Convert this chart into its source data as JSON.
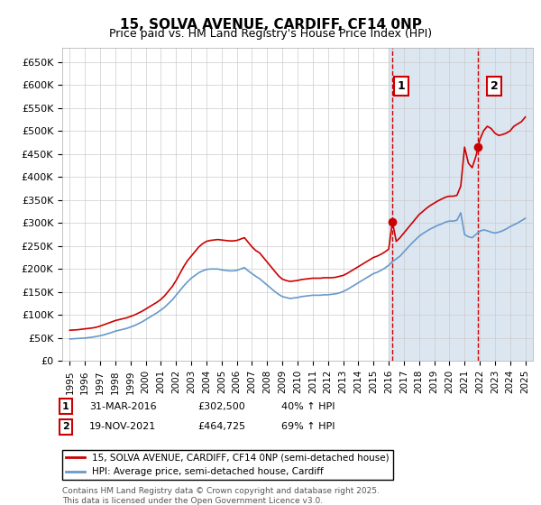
{
  "title": "15, SOLVA AVENUE, CARDIFF, CF14 0NP",
  "subtitle": "Price paid vs. HM Land Registry's House Price Index (HPI)",
  "ylim": [
    0,
    680000
  ],
  "yticks": [
    0,
    50000,
    100000,
    150000,
    200000,
    250000,
    300000,
    350000,
    400000,
    450000,
    500000,
    550000,
    600000,
    650000
  ],
  "xlabel_years": [
    "1995",
    "1996",
    "1997",
    "1998",
    "1999",
    "2000",
    "2001",
    "2002",
    "2003",
    "2004",
    "2005",
    "2006",
    "2007",
    "2008",
    "2009",
    "2010",
    "2011",
    "2012",
    "2013",
    "2014",
    "2015",
    "2016",
    "2017",
    "2018",
    "2019",
    "2020",
    "2021",
    "2022",
    "2023",
    "2024",
    "2025"
  ],
  "red_line_color": "#cc0000",
  "blue_line_color": "#6699cc",
  "background_color": "#ffffff",
  "plot_bg_color": "#ffffff",
  "right_bg_color": "#dce6f1",
  "grid_color": "#cccccc",
  "vline_color": "#cc0000",
  "marker1_year": 2016.25,
  "marker1_price": 302500,
  "marker2_year": 2021.9,
  "marker2_price": 464725,
  "annotation1_label": "1",
  "annotation2_label": "2",
  "sale1_date": "31-MAR-2016",
  "sale1_price": "£302,500",
  "sale1_hpi": "40% ↑ HPI",
  "sale2_date": "19-NOV-2021",
  "sale2_price": "£464,725",
  "sale2_hpi": "69% ↑ HPI",
  "legend1": "15, SOLVA AVENUE, CARDIFF, CF14 0NP (semi-detached house)",
  "legend2": "HPI: Average price, semi-detached house, Cardiff",
  "footnote": "Contains HM Land Registry data © Crown copyright and database right 2025.\nThis data is licensed under the Open Government Licence v3.0.",
  "red_x": [
    1995.0,
    1995.25,
    1995.5,
    1995.75,
    1996.0,
    1996.25,
    1996.5,
    1996.75,
    1997.0,
    1997.25,
    1997.5,
    1997.75,
    1998.0,
    1998.25,
    1998.5,
    1998.75,
    1999.0,
    1999.25,
    1999.5,
    1999.75,
    2000.0,
    2000.25,
    2000.5,
    2000.75,
    2001.0,
    2001.25,
    2001.5,
    2001.75,
    2002.0,
    2002.25,
    2002.5,
    2002.75,
    2003.0,
    2003.25,
    2003.5,
    2003.75,
    2004.0,
    2004.25,
    2004.5,
    2004.75,
    2005.0,
    2005.25,
    2005.5,
    2005.75,
    2006.0,
    2006.25,
    2006.5,
    2006.75,
    2007.0,
    2007.25,
    2007.5,
    2007.75,
    2008.0,
    2008.25,
    2008.5,
    2008.75,
    2009.0,
    2009.25,
    2009.5,
    2009.75,
    2010.0,
    2010.25,
    2010.5,
    2010.75,
    2011.0,
    2011.25,
    2011.5,
    2011.75,
    2012.0,
    2012.25,
    2012.5,
    2012.75,
    2013.0,
    2013.25,
    2013.5,
    2013.75,
    2014.0,
    2014.25,
    2014.5,
    2014.75,
    2015.0,
    2015.25,
    2015.5,
    2015.75,
    2016.0,
    2016.25,
    2016.5,
    2016.75,
    2017.0,
    2017.25,
    2017.5,
    2017.75,
    2018.0,
    2018.25,
    2018.5,
    2018.75,
    2019.0,
    2019.25,
    2019.5,
    2019.75,
    2020.0,
    2020.25,
    2020.5,
    2020.75,
    2021.0,
    2021.25,
    2021.5,
    2021.75,
    2022.0,
    2022.25,
    2022.5,
    2022.75,
    2023.0,
    2023.25,
    2023.5,
    2023.75,
    2024.0,
    2024.25,
    2024.5,
    2024.75,
    2025.0
  ],
  "red_y": [
    67000,
    67500,
    68000,
    69000,
    70000,
    71000,
    72000,
    73500,
    76000,
    79000,
    82000,
    85000,
    88000,
    90000,
    92000,
    94000,
    97000,
    100000,
    104000,
    108000,
    113000,
    118000,
    123000,
    128000,
    134000,
    142000,
    152000,
    162000,
    175000,
    190000,
    205000,
    218000,
    228000,
    238000,
    248000,
    255000,
    260000,
    262000,
    263000,
    264000,
    263000,
    262000,
    261000,
    261000,
    262000,
    265000,
    268000,
    258000,
    248000,
    240000,
    235000,
    225000,
    215000,
    205000,
    195000,
    185000,
    178000,
    175000,
    173000,
    174000,
    175000,
    177000,
    178000,
    179000,
    180000,
    180000,
    180000,
    181000,
    181000,
    181000,
    182000,
    184000,
    186000,
    190000,
    195000,
    200000,
    205000,
    210000,
    215000,
    220000,
    225000,
    228000,
    232000,
    237000,
    243000,
    302500,
    260000,
    268000,
    278000,
    288000,
    298000,
    308000,
    318000,
    325000,
    332000,
    338000,
    343000,
    348000,
    352000,
    356000,
    358000,
    358000,
    360000,
    380000,
    464725,
    430000,
    420000,
    445000,
    480000,
    500000,
    510000,
    505000,
    495000,
    490000,
    492000,
    495000,
    500000,
    510000,
    515000,
    520000,
    530000
  ],
  "blue_x": [
    1995.0,
    1995.25,
    1995.5,
    1995.75,
    1996.0,
    1996.25,
    1996.5,
    1996.75,
    1997.0,
    1997.25,
    1997.5,
    1997.75,
    1998.0,
    1998.25,
    1998.5,
    1998.75,
    1999.0,
    1999.25,
    1999.5,
    1999.75,
    2000.0,
    2000.25,
    2000.5,
    2000.75,
    2001.0,
    2001.25,
    2001.5,
    2001.75,
    2002.0,
    2002.25,
    2002.5,
    2002.75,
    2003.0,
    2003.25,
    2003.5,
    2003.75,
    2004.0,
    2004.25,
    2004.5,
    2004.75,
    2005.0,
    2005.25,
    2005.5,
    2005.75,
    2006.0,
    2006.25,
    2006.5,
    2006.75,
    2007.0,
    2007.25,
    2007.5,
    2007.75,
    2008.0,
    2008.25,
    2008.5,
    2008.75,
    2009.0,
    2009.25,
    2009.5,
    2009.75,
    2010.0,
    2010.25,
    2010.5,
    2010.75,
    2011.0,
    2011.25,
    2011.5,
    2011.75,
    2012.0,
    2012.25,
    2012.5,
    2012.75,
    2013.0,
    2013.25,
    2013.5,
    2013.75,
    2014.0,
    2014.25,
    2014.5,
    2014.75,
    2015.0,
    2015.25,
    2015.5,
    2015.75,
    2016.0,
    2016.25,
    2016.5,
    2016.75,
    2017.0,
    2017.25,
    2017.5,
    2017.75,
    2018.0,
    2018.25,
    2018.5,
    2018.75,
    2019.0,
    2019.25,
    2019.5,
    2019.75,
    2020.0,
    2020.25,
    2020.5,
    2020.75,
    2021.0,
    2021.25,
    2021.5,
    2021.75,
    2022.0,
    2022.25,
    2022.5,
    2022.75,
    2023.0,
    2023.25,
    2023.5,
    2023.75,
    2024.0,
    2024.25,
    2024.5,
    2024.75,
    2025.0
  ],
  "blue_y": [
    48000,
    48500,
    49000,
    49500,
    50000,
    51000,
    52000,
    53500,
    55000,
    57000,
    59500,
    62000,
    65000,
    67000,
    69000,
    71000,
    74000,
    77000,
    81000,
    85000,
    90000,
    95000,
    100000,
    105000,
    111000,
    117000,
    125000,
    133000,
    143000,
    153000,
    163000,
    172000,
    180000,
    186000,
    192000,
    196000,
    199000,
    200000,
    200000,
    200000,
    198000,
    197000,
    196000,
    196000,
    197000,
    200000,
    203000,
    196000,
    190000,
    184000,
    179000,
    172000,
    165000,
    158000,
    151000,
    145000,
    140000,
    138000,
    136000,
    137000,
    138000,
    140000,
    141000,
    142000,
    143000,
    143000,
    143000,
    144000,
    144000,
    145000,
    146000,
    148000,
    151000,
    155000,
    160000,
    165000,
    170000,
    175000,
    180000,
    185000,
    190000,
    193000,
    197000,
    202000,
    208000,
    216000,
    222000,
    228000,
    237000,
    246000,
    255000,
    263000,
    271000,
    277000,
    282000,
    287000,
    291000,
    295000,
    298000,
    302000,
    304000,
    304000,
    306000,
    322000,
    275000,
    270000,
    268000,
    275000,
    282000,
    285000,
    283000,
    280000,
    278000,
    280000,
    283000,
    287000,
    292000,
    296000,
    300000,
    305000,
    310000
  ]
}
